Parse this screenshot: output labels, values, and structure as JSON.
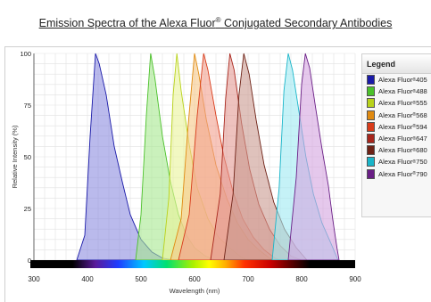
{
  "chart_data": {
    "type": "area",
    "title": "Emission Spectra of the Alexa Fluor",
    "title_mark": "®",
    "title_suffix": "Conjugated Secondary Antibodies",
    "xlabel": "Wavelength (nm)",
    "ylabel": "Relative Intensity (%)",
    "xlim": [
      300,
      900
    ],
    "ylim": [
      0,
      100
    ],
    "x_ticks": [
      300,
      400,
      500,
      600,
      700,
      800,
      900
    ],
    "y_ticks": [
      0,
      25,
      50,
      75,
      100
    ],
    "grid": true,
    "legend_title": "Legend",
    "legend_position": "right",
    "series": [
      {
        "name": "Alexa Fluor",
        "num": "405",
        "color": "#1a1aa8",
        "fill": "#8c8ce0",
        "points": [
          [
            380,
            0
          ],
          [
            395,
            12
          ],
          [
            405,
            60
          ],
          [
            415,
            100
          ],
          [
            422,
            95
          ],
          [
            435,
            80
          ],
          [
            450,
            55
          ],
          [
            465,
            38
          ],
          [
            480,
            22
          ],
          [
            500,
            10
          ],
          [
            520,
            4
          ],
          [
            540,
            1
          ],
          [
            560,
            0
          ]
        ]
      },
      {
        "name": "Alexa Fluor",
        "num": "488",
        "color": "#4bc12a",
        "fill": "#a6e88f",
        "points": [
          [
            490,
            0
          ],
          [
            500,
            22
          ],
          [
            510,
            70
          ],
          [
            518,
            100
          ],
          [
            526,
            88
          ],
          [
            540,
            60
          ],
          [
            555,
            38
          ],
          [
            570,
            22
          ],
          [
            585,
            12
          ],
          [
            600,
            6
          ],
          [
            620,
            2
          ],
          [
            640,
            0
          ]
        ]
      },
      {
        "name": "Alexa Fluor",
        "num": "555",
        "color": "#b8d21a",
        "fill": "#eaf39a",
        "points": [
          [
            540,
            0
          ],
          [
            552,
            30
          ],
          [
            560,
            80
          ],
          [
            567,
            100
          ],
          [
            575,
            82
          ],
          [
            590,
            56
          ],
          [
            605,
            35
          ],
          [
            625,
            20
          ],
          [
            645,
            11
          ],
          [
            670,
            5
          ],
          [
            690,
            1
          ],
          [
            700,
            0
          ]
        ]
      },
      {
        "name": "Alexa Fluor",
        "num": "568",
        "color": "#e08a10",
        "fill": "#f6c887",
        "points": [
          [
            555,
            0
          ],
          [
            575,
            20
          ],
          [
            588,
            65
          ],
          [
            600,
            100
          ],
          [
            608,
            90
          ],
          [
            622,
            68
          ],
          [
            640,
            46
          ],
          [
            660,
            30
          ],
          [
            680,
            18
          ],
          [
            700,
            10
          ],
          [
            720,
            5
          ],
          [
            740,
            1
          ],
          [
            750,
            0
          ]
        ]
      },
      {
        "name": "Alexa Fluor",
        "num": "594",
        "color": "#d83b1a",
        "fill": "#f2a08e",
        "points": [
          [
            570,
            0
          ],
          [
            590,
            22
          ],
          [
            605,
            70
          ],
          [
            617,
            100
          ],
          [
            625,
            92
          ],
          [
            640,
            70
          ],
          [
            655,
            50
          ],
          [
            672,
            33
          ],
          [
            690,
            20
          ],
          [
            710,
            11
          ],
          [
            730,
            5
          ],
          [
            750,
            1
          ],
          [
            760,
            0
          ]
        ]
      },
      {
        "name": "Alexa Fluor",
        "num": "647",
        "color": "#a8261c",
        "fill": "#e39a93",
        "points": [
          [
            630,
            0
          ],
          [
            648,
            32
          ],
          [
            658,
            78
          ],
          [
            666,
            100
          ],
          [
            674,
            92
          ],
          [
            688,
            66
          ],
          [
            703,
            44
          ],
          [
            720,
            27
          ],
          [
            740,
            15
          ],
          [
            760,
            7
          ],
          [
            780,
            2
          ],
          [
            800,
            0
          ]
        ]
      },
      {
        "name": "Alexa Fluor",
        "num": "680",
        "color": "#6e2216",
        "fill": "#c99a90",
        "points": [
          [
            655,
            0
          ],
          [
            672,
            32
          ],
          [
            683,
            80
          ],
          [
            692,
            100
          ],
          [
            702,
            90
          ],
          [
            715,
            68
          ],
          [
            730,
            46
          ],
          [
            748,
            28
          ],
          [
            768,
            15
          ],
          [
            790,
            6
          ],
          [
            810,
            0
          ]
        ]
      },
      {
        "name": "Alexa Fluor",
        "num": "750",
        "color": "#19b5c9",
        "fill": "#9eeaf1",
        "points": [
          [
            745,
            0
          ],
          [
            758,
            35
          ],
          [
            767,
            82
          ],
          [
            775,
            100
          ],
          [
            783,
            92
          ],
          [
            795,
            72
          ],
          [
            808,
            50
          ],
          [
            822,
            32
          ],
          [
            838,
            18
          ],
          [
            855,
            8
          ],
          [
            868,
            0
          ]
        ]
      },
      {
        "name": "Alexa Fluor",
        "num": "790",
        "color": "#6a1f86",
        "fill": "#d3a3df",
        "points": [
          [
            775,
            0
          ],
          [
            790,
            40
          ],
          [
            800,
            85
          ],
          [
            807,
            100
          ],
          [
            815,
            93
          ],
          [
            826,
            74
          ],
          [
            838,
            54
          ],
          [
            850,
            36
          ],
          [
            858,
            20
          ],
          [
            866,
            6
          ],
          [
            870,
            0
          ]
        ]
      }
    ]
  }
}
